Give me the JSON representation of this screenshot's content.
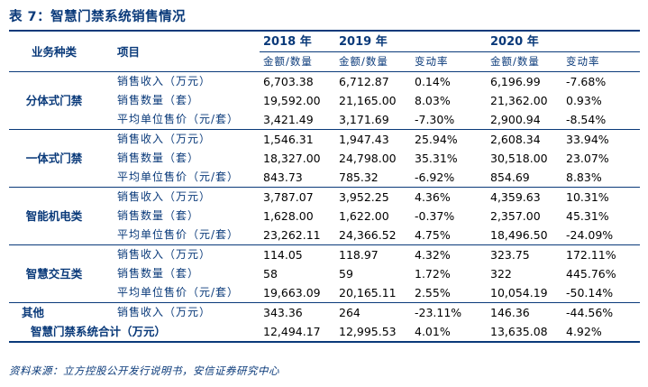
{
  "title": "表 7：智慧门禁系统销售情况",
  "headers": {
    "business": "业务种类",
    "item": "项目",
    "years": [
      "2018 年",
      "2019 年",
      "2020 年"
    ],
    "amount": "金额/数量",
    "change": "变动率"
  },
  "groups": [
    {
      "name": "分体式门禁",
      "rows": [
        {
          "item": "销售收入（万元）",
          "v2018": "6,703.38",
          "v2019": "6,712.87",
          "c2019": "0.14%",
          "v2020": "6,196.99",
          "c2020": "-7.68%"
        },
        {
          "item": "销售数量（套）",
          "v2018": "19,592.00",
          "v2019": "21,165.00",
          "c2019": "8.03%",
          "v2020": "21,362.00",
          "c2020": "0.93%"
        },
        {
          "item": "平均单位售价（元/套）",
          "v2018": "3,421.49",
          "v2019": "3,171.69",
          "c2019": "-7.30%",
          "v2020": "2,900.94",
          "c2020": "-8.54%"
        }
      ]
    },
    {
      "name": "一体式门禁",
      "rows": [
        {
          "item": "销售收入（万元）",
          "v2018": "1,546.31",
          "v2019": "1,947.43",
          "c2019": "25.94%",
          "v2020": "2,608.34",
          "c2020": "33.94%"
        },
        {
          "item": "销售数量（套）",
          "v2018": "18,327.00",
          "v2019": "24,798.00",
          "c2019": "35.31%",
          "v2020": "30,518.00",
          "c2020": "23.07%"
        },
        {
          "item": "平均单位售价（元/套）",
          "v2018": "843.73",
          "v2019": "785.32",
          "c2019": "-6.92%",
          "v2020": "854.69",
          "c2020": "8.83%"
        }
      ]
    },
    {
      "name": "智能机电类",
      "rows": [
        {
          "item": "销售收入（万元）",
          "v2018": "3,787.07",
          "v2019": "3,952.25",
          "c2019": "4.36%",
          "v2020": "4,359.63",
          "c2020": "10.31%"
        },
        {
          "item": "销售数量（套）",
          "v2018": "1,628.00",
          "v2019": "1,622.00",
          "c2019": "-0.37%",
          "v2020": "2,357.00",
          "c2020": "45.31%"
        },
        {
          "item": "平均单位售价（元/套）",
          "v2018": "23,262.11",
          "v2019": "24,366.52",
          "c2019": "4.75%",
          "v2020": "18,496.50",
          "c2020": "-24.09%"
        }
      ]
    },
    {
      "name": "智慧交互类",
      "rows": [
        {
          "item": "销售收入（万元）",
          "v2018": "114.05",
          "v2019": "118.97",
          "c2019": "4.32%",
          "v2020": "323.75",
          "c2020": "172.11%"
        },
        {
          "item": "销售数量（套）",
          "v2018": "58",
          "v2019": "59",
          "c2019": "1.72%",
          "v2020": "322",
          "c2020": "445.76%"
        },
        {
          "item": "平均单位售价（元/套）",
          "v2018": "19,663.09",
          "v2019": "20,165.11",
          "c2019": "2.55%",
          "v2020": "10,054.19",
          "c2020": "-50.14%"
        }
      ]
    }
  ],
  "other": {
    "name": "其他",
    "item": "销售收入（万元）",
    "v2018": "343.36",
    "v2019": "264",
    "c2019": "-23.11%",
    "v2020": "146.36",
    "c2020": "-44.56%"
  },
  "total": {
    "name": "智慧门禁系统合计（万元）",
    "v2018": "12,494.17",
    "v2019": "12,995.53",
    "c2019": "4.01%",
    "v2020": "13,635.08",
    "c2020": "4.92%"
  },
  "source": "资料来源：立方控股公开发行说明书，安信证券研究中心"
}
